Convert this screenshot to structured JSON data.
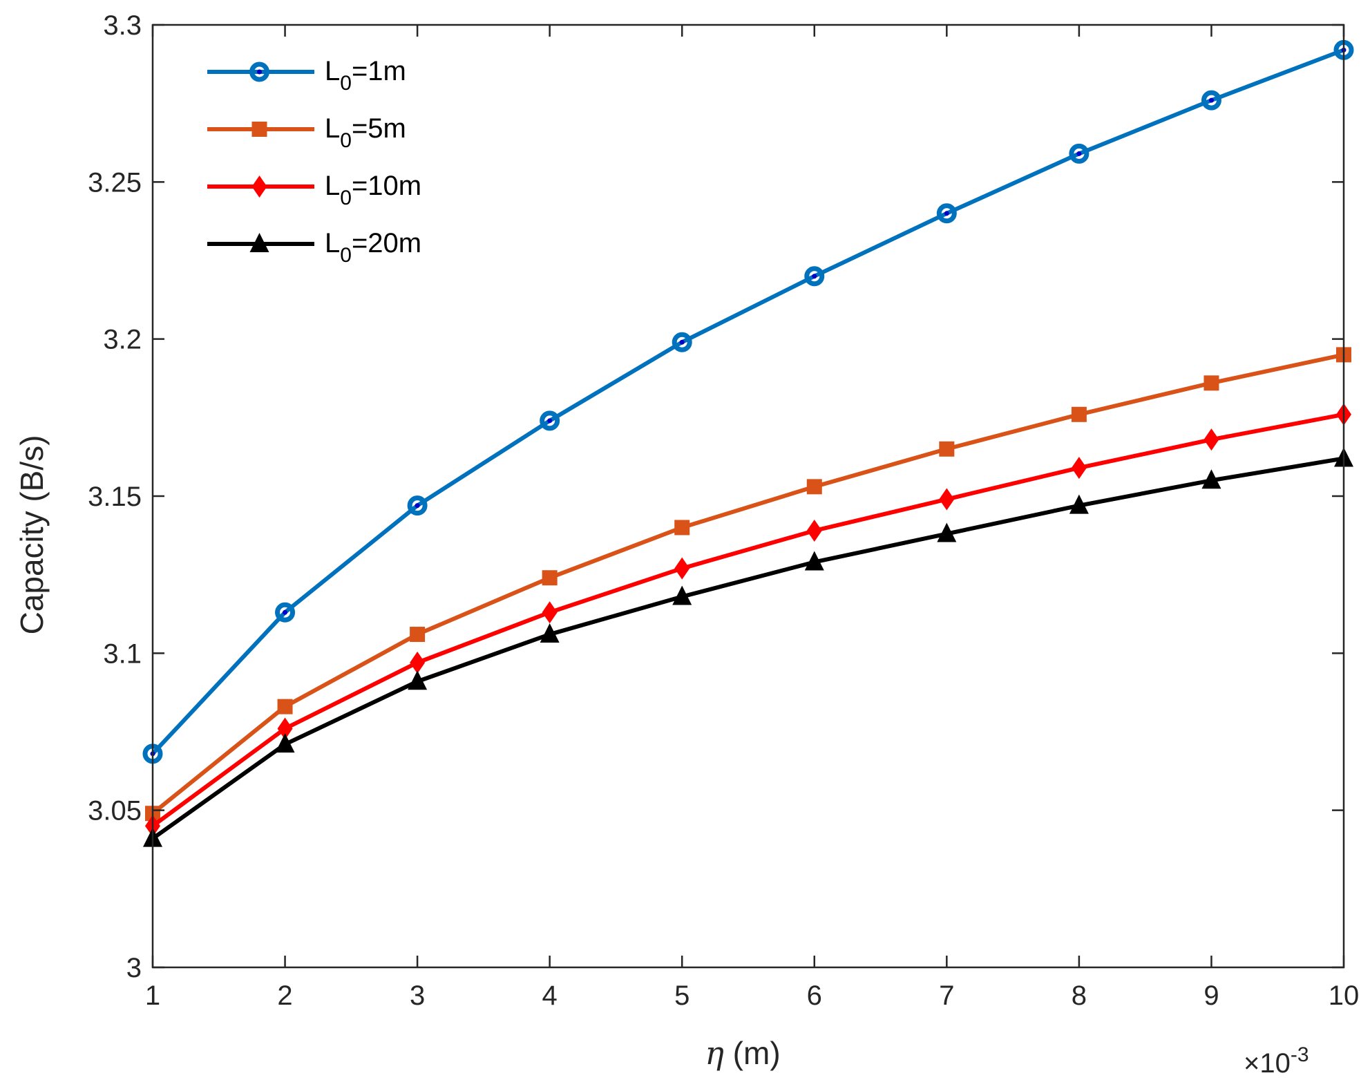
{
  "chart_data": {
    "type": "line",
    "title": "",
    "xlabel": "η (m)",
    "xlabel_symbol": "η",
    "xlabel_unit": " (m)",
    "ylabel": "Capacity (B/s)",
    "x_multiplier": "×10",
    "x_multiplier_exp": "-3",
    "x": [
      1,
      2,
      3,
      4,
      5,
      6,
      7,
      8,
      9,
      10
    ],
    "xlim": [
      1,
      10
    ],
    "ylim": [
      3.0,
      3.3
    ],
    "xticks": [
      "1",
      "2",
      "3",
      "4",
      "5",
      "6",
      "7",
      "8",
      "9",
      "10"
    ],
    "yticks": [
      {
        "value": 3.0,
        "label": "3"
      },
      {
        "value": 3.05,
        "label": "3.05"
      },
      {
        "value": 3.1,
        "label": "3.1"
      },
      {
        "value": 3.15,
        "label": "3.15"
      },
      {
        "value": 3.2,
        "label": "3.2"
      },
      {
        "value": 3.25,
        "label": "3.25"
      },
      {
        "value": 3.3,
        "label": "3.3"
      }
    ],
    "grid": false,
    "legend_position": "top-left",
    "series": [
      {
        "name": "L0=1m",
        "label_main": "L",
        "label_sub": "0",
        "label_rest": "=1m",
        "color": "#0072BD",
        "marker": "circle",
        "values": [
          3.068,
          3.113,
          3.147,
          3.174,
          3.199,
          3.22,
          3.24,
          3.259,
          3.276,
          3.292
        ]
      },
      {
        "name": "L0=5m",
        "label_main": "L",
        "label_sub": "0",
        "label_rest": "=5m",
        "color": "#D95319",
        "marker": "square",
        "values": [
          3.049,
          3.083,
          3.106,
          3.124,
          3.14,
          3.153,
          3.165,
          3.176,
          3.186,
          3.195
        ]
      },
      {
        "name": "L0=10m",
        "label_main": "L",
        "label_sub": "0",
        "label_rest": "=10m",
        "color": "#FF0000",
        "marker": "diamond",
        "values": [
          3.045,
          3.076,
          3.097,
          3.113,
          3.127,
          3.139,
          3.149,
          3.159,
          3.168,
          3.176
        ]
      },
      {
        "name": "L0=20m",
        "label_main": "L",
        "label_sub": "0",
        "label_rest": "=20m",
        "color": "#000000",
        "marker": "triangle",
        "values": [
          3.041,
          3.071,
          3.091,
          3.106,
          3.118,
          3.129,
          3.138,
          3.147,
          3.155,
          3.162
        ]
      }
    ]
  }
}
